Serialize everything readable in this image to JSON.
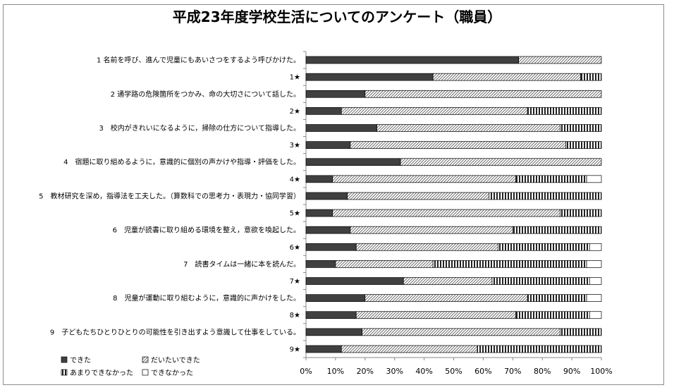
{
  "chart_data": {
    "type": "bar",
    "orientation": "horizontal",
    "stacked": "percent",
    "title": "平成23年度学校生活についてのアンケート（職員）",
    "categories": [
      "1 名前を呼び、進んで児童にもあいさつをするよう呼びかけた。",
      "1★",
      "2 通学路の危険箇所をつかみ、命の大切さについて話した。",
      "2★",
      "3　校内がきれいになるように，掃除の仕方について指導した。",
      "3★",
      "4　宿題に取り組めるように，意識的に個別の声かけや指導・評価をした。",
      "4★",
      "5　教材研究を深め，指導法を工夫した。（算数科での思考力・表現力・協同学習）",
      "5★",
      "6　児童が読書に取り組める環境を整え，意欲を喚起した。",
      "6★",
      "7　読書タイムは一緒に本を読んだ。",
      "7★",
      "8　児童が運動に取り組むように，意識的に声かけをした。",
      "8★",
      "9　子どもたちひとりひとりの可能性を引き出すよう意識して仕事をしている。",
      "9★"
    ],
    "series": [
      {
        "name": "できた",
        "color": "#404040",
        "pattern": "solid",
        "values": [
          72,
          43,
          20,
          12,
          24,
          15,
          32,
          9,
          14,
          9,
          15,
          17,
          10,
          33,
          20,
          17,
          19,
          12
        ]
      },
      {
        "name": "だいたいできた",
        "color": "#ffffff",
        "pattern": "diagonal",
        "values": [
          28,
          50,
          80,
          63,
          62,
          73,
          68,
          62,
          48,
          77,
          55,
          48,
          33,
          30,
          55,
          54,
          67,
          46
        ]
      },
      {
        "name": "あまりできなかった",
        "color": "#ffffff",
        "pattern": "vertical",
        "values": [
          0,
          7,
          0,
          25,
          14,
          12,
          0,
          24,
          38,
          14,
          30,
          31,
          52,
          33,
          20,
          25,
          14,
          42
        ]
      },
      {
        "name": "できなかった",
        "color": "#ffffff",
        "pattern": "none",
        "values": [
          0,
          0,
          0,
          0,
          0,
          0,
          0,
          5,
          0,
          0,
          0,
          4,
          5,
          4,
          5,
          4,
          0,
          0
        ]
      }
    ],
    "xlim": [
      0,
      100
    ],
    "xticks": [
      "0%",
      "10%",
      "20%",
      "30%",
      "40%",
      "50%",
      "60%",
      "70%",
      "80%",
      "90%",
      "100%"
    ],
    "grid": false,
    "legend": "bottom-left"
  }
}
